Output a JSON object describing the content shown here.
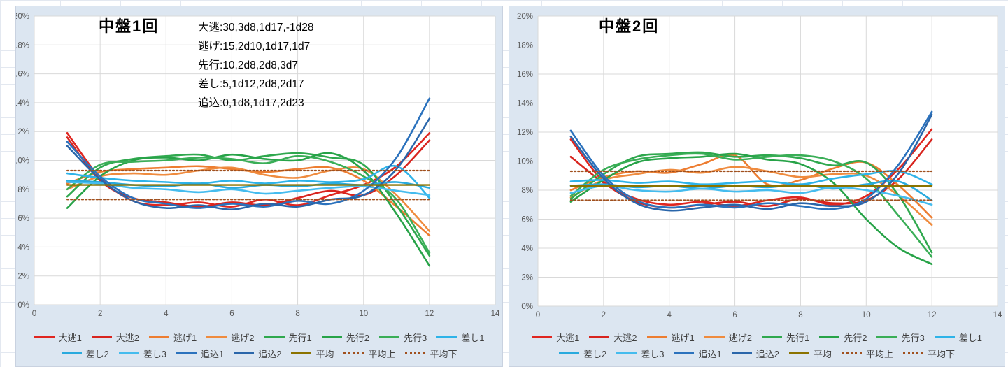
{
  "colors": {
    "chart_bg": "#dce6f1",
    "plot_bg": "#ffffff",
    "grid": "#d9d9d9",
    "axis_text": "#595959",
    "title_text": "#000000",
    "legend_text": "#3f3f3f"
  },
  "legend_rows": [
    8,
    7
  ],
  "chart_data": [
    {
      "type": "line",
      "title": "中盤1回",
      "annotation": [
        "大逃:30,3d8,1d17,-1d28",
        "逃げ:15,2d10,1d17,1d7",
        "先行:10,2d8,2d8,3d7",
        "差し:5,1d12,2d8,2d17",
        "追込:0,1d8,1d17,2d23"
      ],
      "xlim": [
        0,
        14
      ],
      "ylim": [
        0,
        20
      ],
      "x_ticks": [
        "0",
        "2",
        "4",
        "6",
        "8",
        "10",
        "12",
        "14"
      ],
      "y_ticks": [
        "20%",
        "18%",
        "16%",
        "14%",
        "12%",
        "10%",
        "8%",
        "6%",
        "4%",
        "2%",
        "0%"
      ],
      "x": [
        1,
        2,
        3,
        4,
        5,
        6,
        7,
        8,
        9,
        10,
        11,
        12
      ],
      "series": [
        {
          "key": "oonige-1",
          "name": "大逃1",
          "color": "#e02620",
          "dash": false,
          "values": [
            11.9,
            8.8,
            7.2,
            6.9,
            7.1,
            6.8,
            7.3,
            6.9,
            7.6,
            8.3,
            9.6,
            11.9
          ]
        },
        {
          "key": "oonige-2",
          "name": "大逃2",
          "color": "#d8241e",
          "dash": false,
          "values": [
            11.6,
            8.6,
            7.4,
            7.1,
            6.8,
            7.1,
            6.9,
            7.4,
            7.9,
            7.6,
            9.0,
            11.4
          ]
        },
        {
          "key": "nige-1",
          "name": "逃げ1",
          "color": "#ed7d31",
          "dash": false,
          "values": [
            8.4,
            9.2,
            9.4,
            9.5,
            9.6,
            9.4,
            9.2,
            9.4,
            9.5,
            8.6,
            6.8,
            4.8
          ]
        },
        {
          "key": "nige-2",
          "name": "逃げ2",
          "color": "#ef8b3e",
          "dash": false,
          "values": [
            8.0,
            8.9,
            9.1,
            9.0,
            9.3,
            9.5,
            9.0,
            8.8,
            9.3,
            9.4,
            7.6,
            5.1
          ]
        },
        {
          "key": "senko-1",
          "name": "先行1",
          "color": "#2fa84e",
          "dash": false,
          "values": [
            7.5,
            9.5,
            10.1,
            10.3,
            10.4,
            10.0,
            10.3,
            10.5,
            10.2,
            9.7,
            6.9,
            3.4
          ]
        },
        {
          "key": "senko-2",
          "name": "先行2",
          "color": "#27a348",
          "dash": false,
          "values": [
            6.7,
            8.9,
            10.0,
            10.2,
            10.0,
            10.4,
            10.1,
            10.0,
            10.5,
            9.3,
            6.3,
            2.7
          ]
        },
        {
          "key": "senko-3",
          "name": "先行3",
          "color": "#3aae57",
          "dash": false,
          "values": [
            8.0,
            9.7,
            9.9,
            10.0,
            10.2,
            10.1,
            9.8,
            10.3,
            9.9,
            8.9,
            7.3,
            3.6
          ]
        },
        {
          "key": "sashi-1",
          "name": "差し1",
          "color": "#2eb3e8",
          "dash": false,
          "values": [
            9.1,
            8.8,
            8.6,
            8.5,
            8.4,
            8.6,
            8.4,
            8.6,
            8.5,
            8.7,
            9.6,
            7.4
          ]
        },
        {
          "key": "sashi-2",
          "name": "差し2",
          "color": "#29aade",
          "dash": false,
          "values": [
            8.6,
            8.5,
            8.3,
            8.2,
            8.4,
            8.1,
            8.3,
            8.2,
            8.4,
            8.3,
            8.5,
            8.1
          ]
        },
        {
          "key": "sashi-3",
          "name": "差し3",
          "color": "#45bcee",
          "dash": false,
          "values": [
            8.5,
            8.4,
            8.1,
            8.0,
            7.8,
            8.0,
            7.7,
            7.9,
            8.1,
            8.2,
            7.9,
            7.6
          ]
        },
        {
          "key": "oikomi-1",
          "name": "追込1",
          "color": "#2b72bd",
          "dash": false,
          "values": [
            11.3,
            8.9,
            7.4,
            7.0,
            6.7,
            7.0,
            6.8,
            7.2,
            7.0,
            7.9,
            10.2,
            14.3
          ]
        },
        {
          "key": "oikomi-2",
          "name": "追込2",
          "color": "#2a66aa",
          "dash": false,
          "values": [
            11.0,
            8.7,
            7.2,
            6.7,
            6.9,
            6.6,
            7.0,
            6.8,
            7.3,
            7.6,
            9.4,
            12.9
          ]
        },
        {
          "key": "heikin",
          "name": "平均",
          "color": "#8b7300",
          "dash": false,
          "values": [
            8.3,
            8.3,
            8.3,
            8.3,
            8.3,
            8.3,
            8.3,
            8.3,
            8.3,
            8.3,
            8.3,
            8.3
          ]
        },
        {
          "key": "heikin-ue",
          "name": "平均上",
          "color": "#a0501e",
          "dash": true,
          "values": [
            9.3,
            9.3,
            9.3,
            9.3,
            9.3,
            9.3,
            9.3,
            9.3,
            9.3,
            9.3,
            9.3,
            9.3
          ]
        },
        {
          "key": "heikin-shita",
          "name": "平均下",
          "color": "#a0501e",
          "dash": true,
          "values": [
            7.3,
            7.3,
            7.3,
            7.3,
            7.3,
            7.3,
            7.3,
            7.3,
            7.3,
            7.3,
            7.3,
            7.3
          ]
        }
      ]
    },
    {
      "type": "line",
      "title": "中盤2回",
      "annotation": [],
      "xlim": [
        0,
        14
      ],
      "ylim": [
        0,
        20
      ],
      "x_ticks": [
        "0",
        "2",
        "4",
        "6",
        "8",
        "10",
        "12",
        "14"
      ],
      "y_ticks": [
        "20%",
        "18%",
        "16%",
        "14%",
        "12%",
        "10%",
        "8%",
        "6%",
        "4%",
        "2%",
        "0%"
      ],
      "x": [
        1,
        2,
        3,
        4,
        5,
        6,
        7,
        8,
        9,
        10,
        11,
        12
      ],
      "series": [
        {
          "key": "oonige-1",
          "name": "大逃1",
          "color": "#e02620",
          "dash": false,
          "values": [
            11.5,
            8.6,
            7.4,
            7.0,
            7.2,
            6.9,
            7.3,
            7.5,
            7.0,
            7.6,
            9.5,
            12.2
          ]
        },
        {
          "key": "oonige-2",
          "name": "大逃2",
          "color": "#d8241e",
          "dash": false,
          "values": [
            10.3,
            8.5,
            7.2,
            6.8,
            7.0,
            7.2,
            6.9,
            7.4,
            7.1,
            7.3,
            8.8,
            11.5
          ]
        },
        {
          "key": "nige-1",
          "name": "逃げ1",
          "color": "#ed7d31",
          "dash": false,
          "values": [
            8.0,
            8.9,
            9.3,
            9.2,
            9.8,
            10.4,
            8.4,
            8.7,
            9.5,
            9.9,
            8.3,
            6.1
          ]
        },
        {
          "key": "nige-2",
          "name": "逃げ2",
          "color": "#ef8b3e",
          "dash": false,
          "values": [
            7.5,
            8.7,
            9.1,
            9.4,
            9.2,
            9.6,
            9.3,
            8.9,
            9.1,
            9.0,
            7.6,
            5.6
          ]
        },
        {
          "key": "senko-1",
          "name": "先行1",
          "color": "#2fa84e",
          "dash": false,
          "values": [
            7.4,
            9.1,
            10.3,
            10.5,
            10.6,
            10.3,
            10.4,
            10.2,
            9.7,
            9.9,
            7.6,
            3.7
          ]
        },
        {
          "key": "senko-2",
          "name": "先行2",
          "color": "#27a348",
          "dash": false,
          "values": [
            7.2,
            8.7,
            9.9,
            10.2,
            10.3,
            10.5,
            10.1,
            9.8,
            8.5,
            6.0,
            4.0,
            2.9
          ]
        },
        {
          "key": "senko-3",
          "name": "先行3",
          "color": "#3aae57",
          "dash": false,
          "values": [
            7.6,
            9.4,
            10.1,
            10.4,
            10.5,
            10.1,
            10.3,
            10.4,
            10.0,
            8.8,
            6.2,
            3.4
          ]
        },
        {
          "key": "sashi-1",
          "name": "差し1",
          "color": "#2eb3e8",
          "dash": false,
          "values": [
            8.6,
            8.7,
            8.5,
            8.6,
            8.4,
            8.5,
            8.6,
            8.4,
            8.8,
            9.1,
            9.3,
            8.4
          ]
        },
        {
          "key": "sashi-2",
          "name": "差し2",
          "color": "#29aade",
          "dash": false,
          "values": [
            8.3,
            8.4,
            8.2,
            8.3,
            8.1,
            8.3,
            8.2,
            8.4,
            8.1,
            8.4,
            8.6,
            7.3
          ]
        },
        {
          "key": "sashi-3",
          "name": "差し3",
          "color": "#45bcee",
          "dash": false,
          "values": [
            7.8,
            8.3,
            8.0,
            7.9,
            8.1,
            7.9,
            8.0,
            7.8,
            8.2,
            8.0,
            7.6,
            7.0
          ]
        },
        {
          "key": "oikomi-1",
          "name": "追込1",
          "color": "#2b72bd",
          "dash": false,
          "values": [
            12.1,
            9.0,
            7.3,
            6.8,
            7.0,
            6.8,
            7.1,
            6.9,
            6.7,
            7.4,
            9.8,
            13.4
          ]
        },
        {
          "key": "oikomi-2",
          "name": "追込2",
          "color": "#2a66aa",
          "dash": false,
          "values": [
            11.7,
            8.8,
            7.1,
            6.6,
            6.8,
            7.0,
            6.7,
            7.1,
            6.9,
            7.2,
            9.2,
            13.2
          ]
        },
        {
          "key": "heikin",
          "name": "平均",
          "color": "#8b7300",
          "dash": false,
          "values": [
            8.3,
            8.3,
            8.3,
            8.3,
            8.3,
            8.3,
            8.3,
            8.3,
            8.3,
            8.3,
            8.3,
            8.3
          ]
        },
        {
          "key": "heikin-ue",
          "name": "平均上",
          "color": "#a0501e",
          "dash": true,
          "values": [
            9.3,
            9.3,
            9.3,
            9.3,
            9.3,
            9.3,
            9.3,
            9.3,
            9.3,
            9.3,
            9.3,
            9.3
          ]
        },
        {
          "key": "heikin-shita",
          "name": "平均下",
          "color": "#a0501e",
          "dash": true,
          "values": [
            7.3,
            7.3,
            7.3,
            7.3,
            7.3,
            7.3,
            7.3,
            7.3,
            7.3,
            7.3,
            7.3,
            7.3
          ]
        }
      ]
    }
  ]
}
